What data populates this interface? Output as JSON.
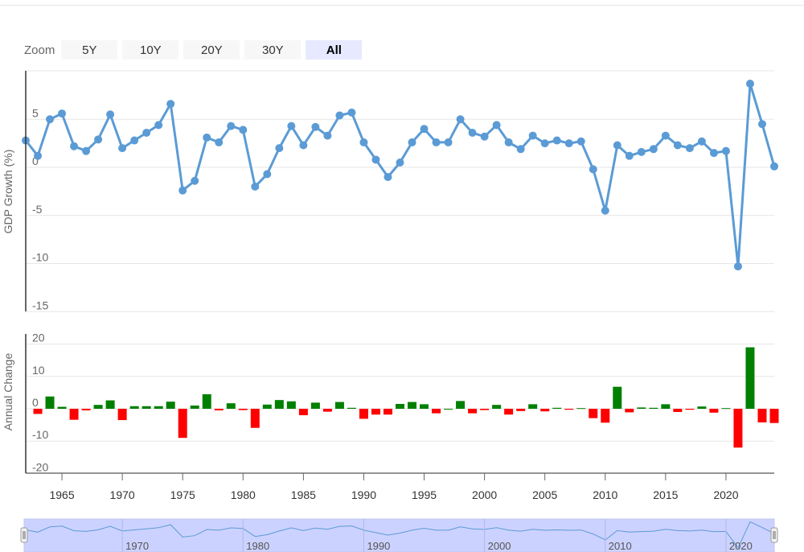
{
  "zoom": {
    "label": "Zoom",
    "buttons": [
      "5Y",
      "10Y",
      "20Y",
      "30Y",
      "All"
    ],
    "active": "All"
  },
  "chart_data": {
    "type": "line",
    "ylabel": "GDP Growth (%)",
    "ylim": [
      -15,
      10
    ],
    "yticks": [
      5,
      0,
      -5,
      -10,
      -15
    ],
    "xlim": [
      1962,
      2024
    ],
    "xticks": [
      1965,
      1970,
      1975,
      1980,
      1985,
      1990,
      1995,
      2000,
      2005,
      2010,
      2015,
      2020
    ],
    "x": [
      1962,
      1963,
      1964,
      1965,
      1966,
      1967,
      1968,
      1969,
      1970,
      1971,
      1972,
      1973,
      1974,
      1975,
      1976,
      1977,
      1978,
      1979,
      1980,
      1981,
      1982,
      1983,
      1984,
      1985,
      1986,
      1987,
      1988,
      1989,
      1990,
      1991,
      1992,
      1993,
      1994,
      1995,
      1996,
      1997,
      1998,
      1999,
      2000,
      2001,
      2002,
      2003,
      2004,
      2005,
      2006,
      2007,
      2008,
      2009,
      2010,
      2011,
      2012,
      2013,
      2014,
      2015,
      2016,
      2017,
      2018,
      2019,
      2020,
      2021,
      2022,
      2023,
      2024
    ],
    "values": [
      2.8,
      1.2,
      5.0,
      5.6,
      2.2,
      1.7,
      2.9,
      5.5,
      2.0,
      2.8,
      3.6,
      4.4,
      6.6,
      -2.4,
      -1.4,
      3.1,
      2.6,
      4.3,
      3.9,
      -2.0,
      -0.7,
      2.0,
      4.3,
      2.3,
      4.2,
      3.3,
      5.4,
      5.7,
      2.6,
      0.8,
      -1.0,
      0.5,
      2.6,
      4.0,
      2.6,
      2.6,
      5.0,
      3.6,
      3.2,
      4.4,
      2.6,
      1.9,
      3.3,
      2.5,
      2.8,
      2.5,
      2.7,
      -0.2,
      -4.5,
      2.3,
      1.2,
      1.6,
      1.9,
      3.3,
      2.3,
      2.0,
      2.7,
      1.5,
      1.7,
      -10.3,
      8.7,
      4.5,
      0.1
    ],
    "annual_change": {
      "ylabel": "Annual Change",
      "ylim": [
        -20,
        20
      ],
      "yticks": [
        20,
        10,
        0,
        -10,
        -20
      ],
      "values": [
        -1.6,
        3.8,
        0.6,
        -3.4,
        -0.5,
        1.2,
        2.6,
        -3.5,
        0.8,
        0.8,
        0.8,
        2.2,
        -9.0,
        1.0,
        4.5,
        -0.5,
        1.7,
        -0.4,
        -5.9,
        1.3,
        2.7,
        2.3,
        -2.0,
        1.9,
        -0.9,
        2.1,
        0.3,
        -3.1,
        -1.8,
        -1.8,
        1.5,
        2.1,
        1.4,
        -1.4,
        0.0,
        2.4,
        -1.4,
        -0.4,
        1.2,
        -1.8,
        -0.7,
        1.4,
        -0.8,
        0.3,
        -0.3,
        0.2,
        -2.9,
        -4.3,
        6.8,
        -1.1,
        0.4,
        0.3,
        1.4,
        -1.0,
        -0.3,
        0.7,
        -1.2,
        0.2,
        -12.0,
        19.0,
        -4.2,
        -4.4
      ],
      "positive_color": "#008000",
      "negative_color": "#ff0000"
    },
    "navigator": {
      "xticks": [
        1970,
        1980,
        1990,
        2000,
        2010,
        2020
      ]
    },
    "line_color": "#5b9bd5",
    "grid": true,
    "legend": "none"
  }
}
